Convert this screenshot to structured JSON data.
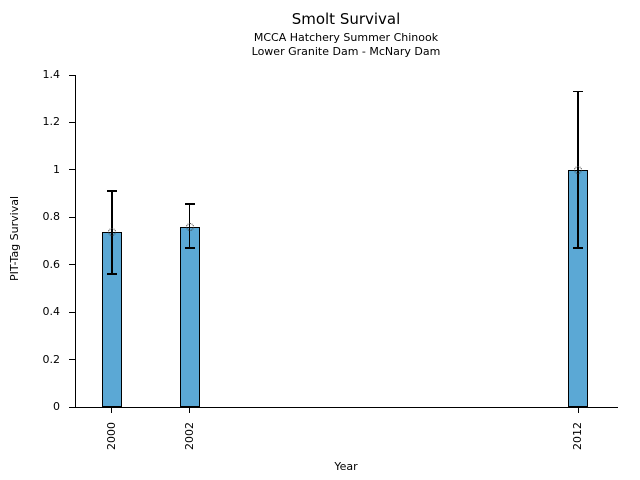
{
  "chart_data": {
    "type": "bar",
    "title": "Smolt Survival",
    "subtitle_line1": "MCCA Hatchery Summer Chinook",
    "subtitle_line2": "Lower Granite Dam - McNary Dam",
    "xlabel": "Year",
    "ylabel": "PIT-Tag Survival",
    "categories": [
      "2000",
      "2002",
      "2012"
    ],
    "x_numeric": [
      2000,
      2002,
      2012
    ],
    "values": [
      0.74,
      0.76,
      1.0
    ],
    "error_low": [
      0.56,
      0.67,
      0.67
    ],
    "error_high": [
      0.91,
      0.855,
      1.33
    ],
    "xlim": [
      1999.05,
      2013
    ],
    "ylim": [
      0,
      1.4
    ],
    "yticks": [
      0,
      0.2,
      0.4,
      0.6,
      0.8,
      1,
      1.2,
      1.4
    ],
    "ytick_labels": [
      "0",
      "0.2",
      "0.4",
      "0.6",
      "0.8",
      "1",
      "1.2",
      "1.4"
    ],
    "grid": false,
    "legend": "none",
    "marker": "open-circle-dotted",
    "colors": {
      "bar_fill": "#5BA8D5",
      "bar_edge": "#000000",
      "error_bar": "#000000",
      "text": "#000000",
      "background": "#ffffff"
    }
  }
}
